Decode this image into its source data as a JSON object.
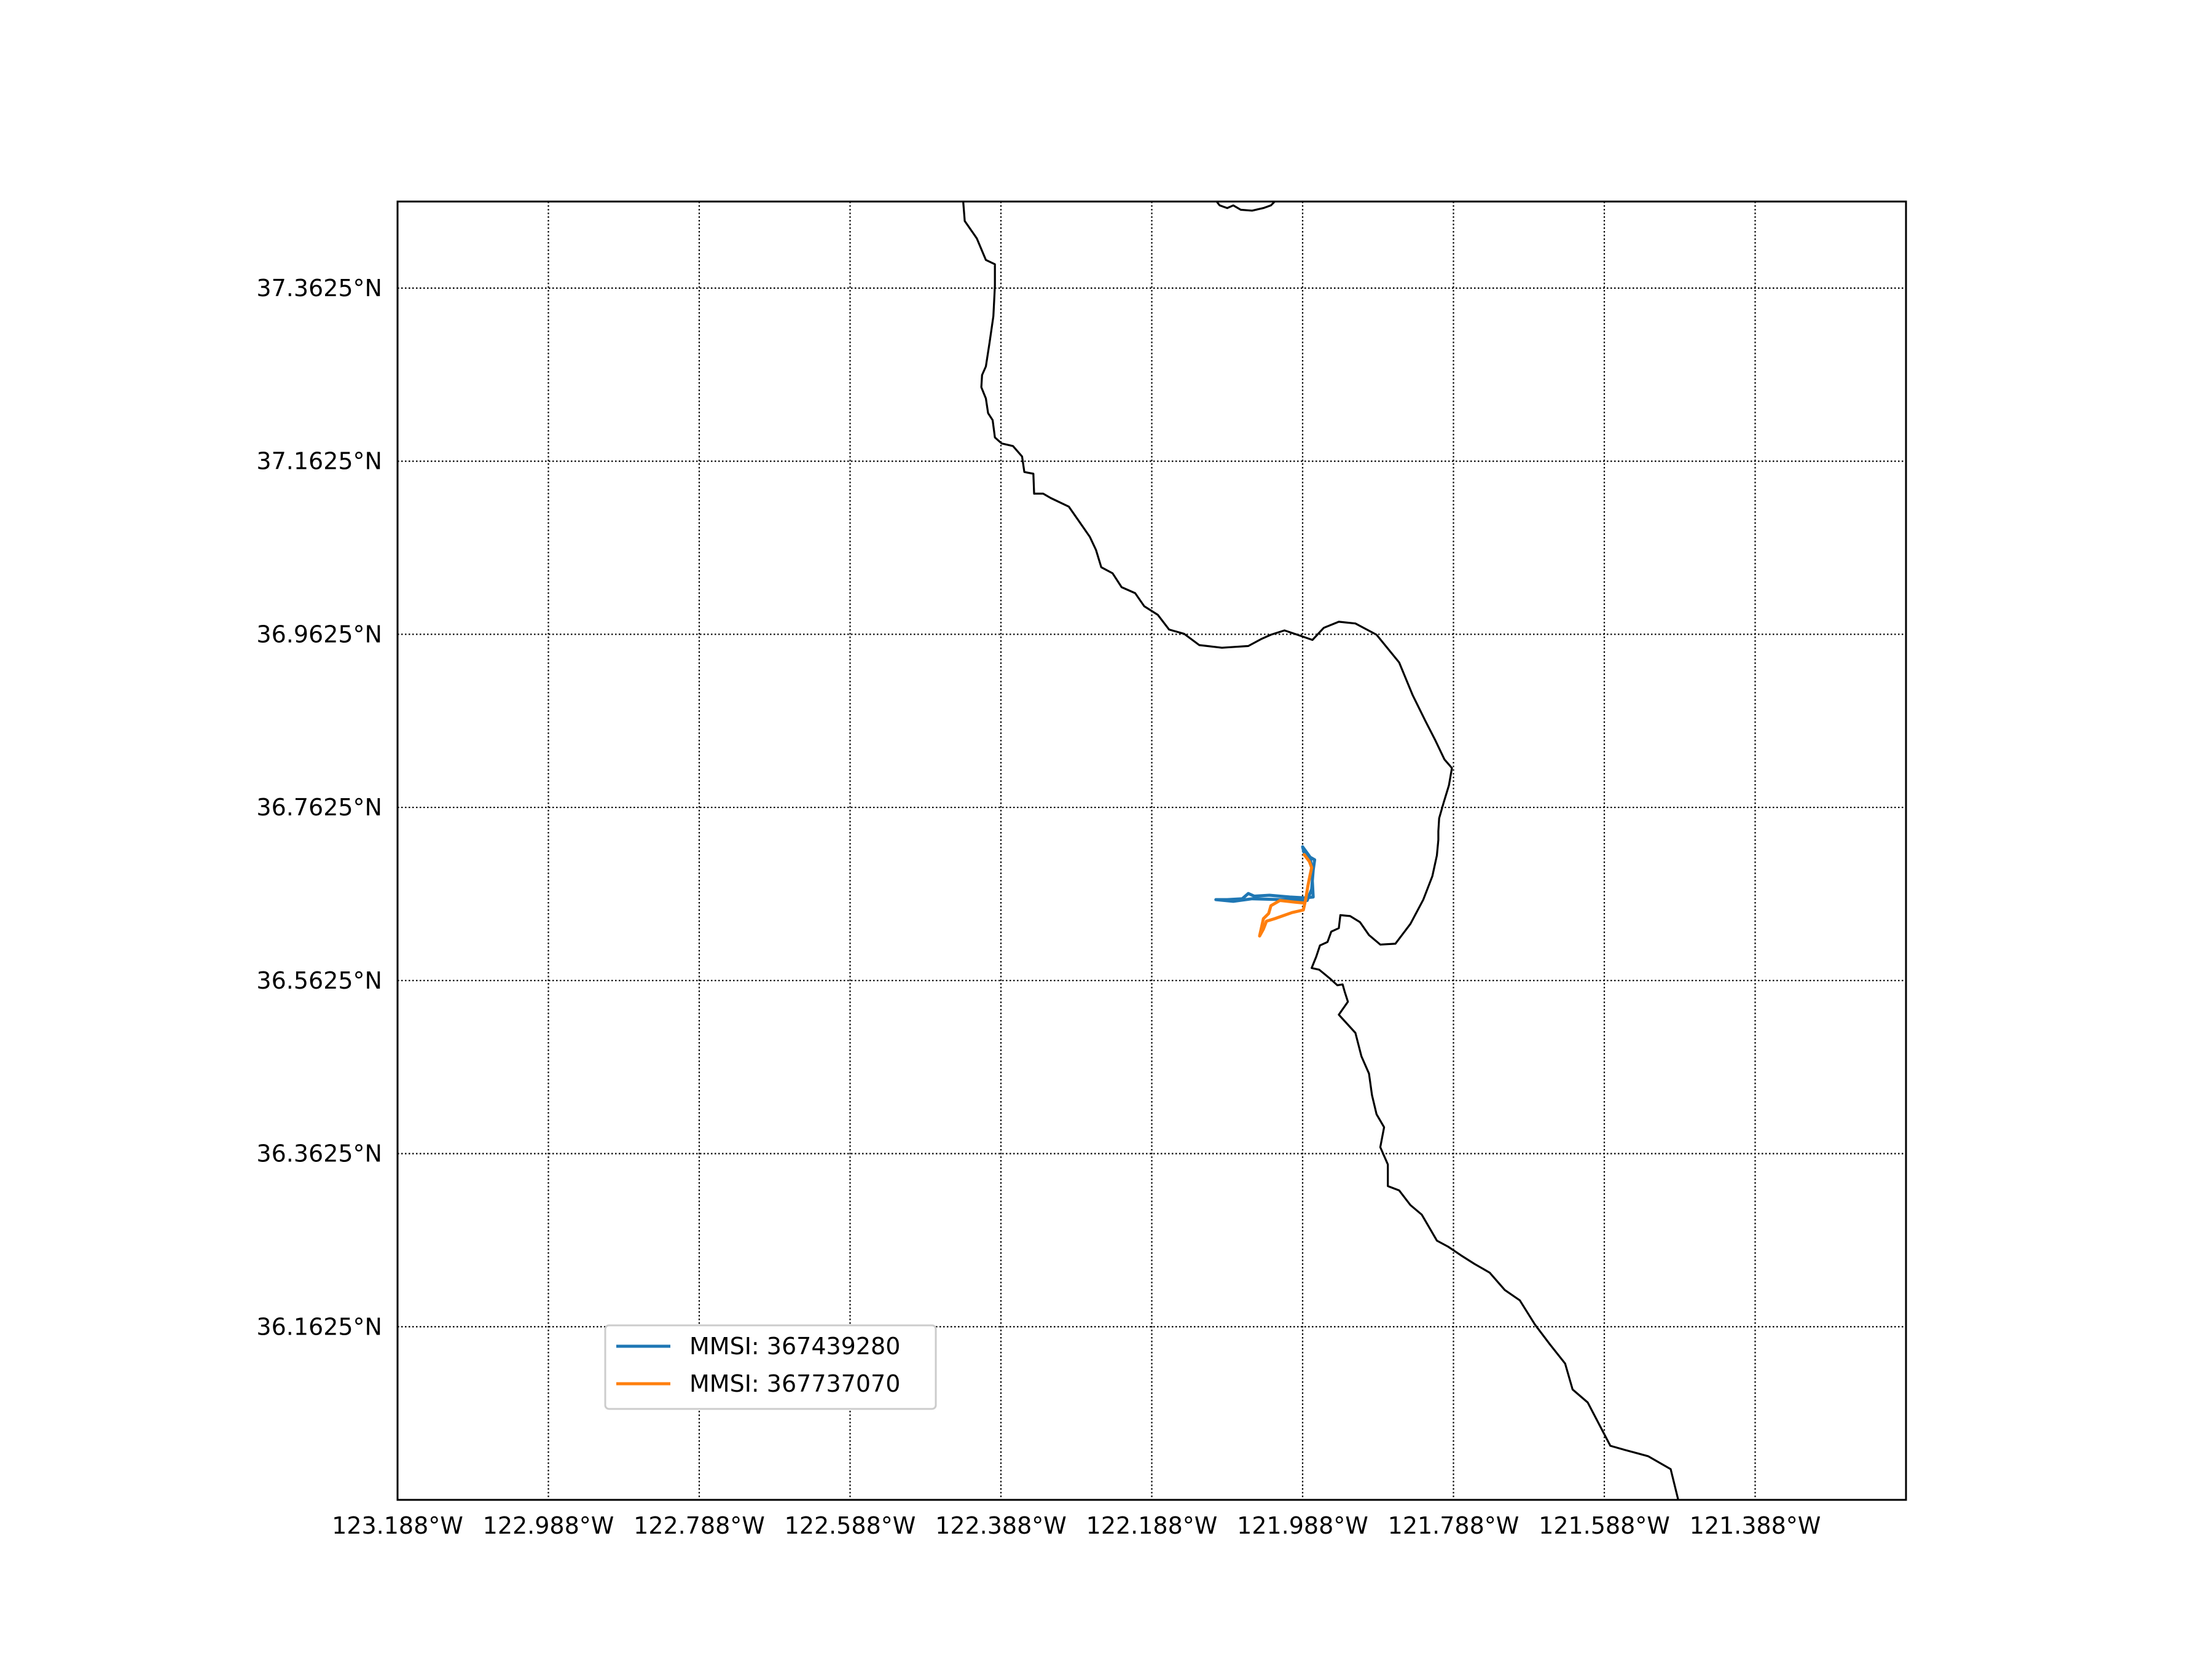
{
  "map": {
    "x_ticks": [
      "123.188°W",
      "122.988°W",
      "122.788°W",
      "122.588°W",
      "122.388°W",
      "122.188°W",
      "121.988°W",
      "121.788°W",
      "121.588°W",
      "121.388°W"
    ],
    "y_ticks": [
      "37.3625°N",
      "37.1625°N",
      "36.9625°N",
      "36.7625°N",
      "36.5625°N",
      "36.3625°N",
      "36.1625°N"
    ],
    "grid": true,
    "grid_style": "dotted",
    "legend_placement": "lower-left",
    "colors": {
      "coastline": "#000000",
      "grid": "#000000",
      "frame": "#000000"
    }
  },
  "legend": {
    "items": [
      {
        "label": "MMSI: 367439280",
        "color": "#1f77b4"
      },
      {
        "label": "MMSI: 367737070",
        "color": "#ff7f0e"
      }
    ]
  },
  "chart_data": {
    "type": "line",
    "xlim": [
      -123.188,
      -121.188
    ],
    "ylim": [
      35.9625,
      37.4625
    ],
    "x_unit": "degrees longitude",
    "y_unit": "degrees latitude",
    "series": [
      {
        "name": "MMSI: 367439280",
        "color": "#1f77b4",
        "points": [
          [
            -121.988,
            36.717
          ],
          [
            -121.978,
            36.705
          ],
          [
            -121.976,
            36.692
          ],
          [
            -121.975,
            36.675
          ],
          [
            -121.974,
            36.659
          ],
          [
            -121.985,
            36.658
          ],
          [
            -122.005,
            36.659
          ],
          [
            -122.032,
            36.661
          ],
          [
            -122.052,
            36.66
          ],
          [
            -122.06,
            36.663
          ],
          [
            -122.068,
            36.657
          ],
          [
            -122.088,
            36.656
          ],
          [
            -122.103,
            36.656
          ],
          [
            -122.08,
            36.654
          ],
          [
            -122.055,
            36.657
          ],
          [
            -122.015,
            36.656
          ],
          [
            -121.982,
            36.655
          ],
          [
            -121.976,
            36.668
          ],
          [
            -121.974,
            36.69
          ],
          [
            -121.972,
            36.702
          ],
          [
            -121.98,
            36.706
          ],
          [
            -121.986,
            36.71
          ],
          [
            -121.988,
            36.717
          ]
        ]
      },
      {
        "name": "MMSI: 367737070",
        "color": "#ff7f0e",
        "points": [
          [
            -121.986,
            36.708
          ],
          [
            -121.979,
            36.7
          ],
          [
            -121.976,
            36.693
          ],
          [
            -121.978,
            36.685
          ],
          [
            -121.981,
            36.672
          ],
          [
            -121.984,
            36.656
          ],
          [
            -121.987,
            36.644
          ],
          [
            -122.002,
            36.641
          ],
          [
            -122.025,
            36.634
          ],
          [
            -122.036,
            36.631
          ],
          [
            -122.04,
            36.622
          ],
          [
            -122.045,
            36.614
          ],
          [
            -122.04,
            36.634
          ],
          [
            -122.033,
            36.64
          ],
          [
            -122.03,
            36.649
          ],
          [
            -122.018,
            36.655
          ],
          [
            -121.998,
            36.653
          ],
          [
            -121.985,
            36.652
          ]
        ]
      }
    ],
    "coastline": [
      [
        -122.438,
        37.4625
      ],
      [
        -122.436,
        37.44
      ],
      [
        -122.42,
        37.42
      ],
      [
        -122.408,
        37.395
      ],
      [
        -122.396,
        37.39
      ],
      [
        -122.396,
        37.365
      ],
      [
        -122.398,
        37.33
      ],
      [
        -122.403,
        37.3
      ],
      [
        -122.408,
        37.272
      ],
      [
        -122.413,
        37.262
      ],
      [
        -122.414,
        37.248
      ],
      [
        -122.408,
        37.235
      ],
      [
        -122.405,
        37.218
      ],
      [
        -122.399,
        37.21
      ],
      [
        -122.396,
        37.19
      ],
      [
        -122.387,
        37.183
      ],
      [
        -122.372,
        37.18
      ],
      [
        -122.36,
        37.168
      ],
      [
        -122.357,
        37.15
      ],
      [
        -122.345,
        37.148
      ],
      [
        -122.344,
        37.125
      ],
      [
        -122.332,
        37.125
      ],
      [
        -122.322,
        37.12
      ],
      [
        -122.298,
        37.11
      ],
      [
        -122.282,
        37.09
      ],
      [
        -122.27,
        37.075
      ],
      [
        -122.262,
        37.06
      ],
      [
        -122.255,
        37.04
      ],
      [
        -122.24,
        37.033
      ],
      [
        -122.228,
        37.017
      ],
      [
        -122.21,
        37.01
      ],
      [
        -122.198,
        36.995
      ],
      [
        -122.18,
        36.985
      ],
      [
        -122.165,
        36.968
      ],
      [
        -122.145,
        36.963
      ],
      [
        -122.125,
        36.95
      ],
      [
        -122.095,
        36.947
      ],
      [
        -122.078,
        36.948
      ],
      [
        -122.06,
        36.949
      ],
      [
        -122.043,
        36.957
      ],
      [
        -122.03,
        36.962
      ],
      [
        -122.012,
        36.967
      ],
      [
        -121.995,
        36.962
      ],
      [
        -121.975,
        36.956
      ],
      [
        -121.96,
        36.97
      ],
      [
        -121.94,
        36.977
      ],
      [
        -121.918,
        36.975
      ],
      [
        -121.89,
        36.962
      ],
      [
        -121.86,
        36.93
      ],
      [
        -121.842,
        36.892
      ],
      [
        -121.825,
        36.862
      ],
      [
        -121.812,
        36.84
      ],
      [
        -121.8,
        36.818
      ],
      [
        -121.79,
        36.808
      ],
      [
        -121.794,
        36.788
      ],
      [
        -121.801,
        36.768
      ],
      [
        -121.807,
        36.75
      ],
      [
        -121.808,
        36.735
      ],
      [
        -121.808,
        36.725
      ],
      [
        -121.81,
        36.707
      ],
      [
        -121.816,
        36.683
      ],
      [
        -121.828,
        36.656
      ],
      [
        -121.845,
        36.628
      ],
      [
        -121.865,
        36.605
      ],
      [
        -121.885,
        36.604
      ],
      [
        -121.9,
        36.615
      ],
      [
        -121.912,
        36.63
      ],
      [
        -121.925,
        36.637
      ],
      [
        -121.938,
        36.638
      ],
      [
        -121.94,
        36.623
      ],
      [
        -121.95,
        36.619
      ],
      [
        -121.955,
        36.607
      ],
      [
        -121.965,
        36.603
      ],
      [
        -121.97,
        36.59
      ],
      [
        -121.976,
        36.577
      ],
      [
        -121.966,
        36.575
      ],
      [
        -121.952,
        36.565
      ],
      [
        -121.942,
        36.557
      ],
      [
        -121.935,
        36.558
      ],
      [
        -121.932,
        36.549
      ],
      [
        -121.928,
        36.538
      ],
      [
        -121.94,
        36.523
      ],
      [
        -121.918,
        36.502
      ],
      [
        -121.91,
        36.475
      ],
      [
        -121.9,
        36.455
      ],
      [
        -121.896,
        36.43
      ],
      [
        -121.89,
        36.408
      ],
      [
        -121.88,
        36.393
      ],
      [
        -121.885,
        36.37
      ],
      [
        -121.875,
        36.35
      ],
      [
        -121.875,
        36.325
      ],
      [
        -121.86,
        36.32
      ],
      [
        -121.845,
        36.303
      ],
      [
        -121.83,
        36.292
      ],
      [
        -121.818,
        36.274
      ],
      [
        -121.81,
        36.262
      ],
      [
        -121.795,
        36.255
      ],
      [
        -121.778,
        36.245
      ],
      [
        -121.76,
        36.235
      ],
      [
        -121.74,
        36.225
      ],
      [
        -121.72,
        36.205
      ],
      [
        -121.7,
        36.193
      ],
      [
        -121.68,
        36.165
      ],
      [
        -121.66,
        36.142
      ],
      [
        -121.64,
        36.12
      ],
      [
        -121.63,
        36.09
      ],
      [
        -121.61,
        36.075
      ],
      [
        -121.595,
        36.05
      ],
      [
        -121.58,
        36.025
      ],
      [
        -121.56,
        36.02
      ],
      [
        -121.53,
        36.013
      ],
      [
        -121.5,
        35.998
      ],
      [
        -121.49,
        35.9625
      ]
    ],
    "coastline_top": [
      [
        -122.102,
        37.4625
      ],
      [
        -122.098,
        37.458
      ],
      [
        -122.088,
        37.455
      ],
      [
        -122.08,
        37.458
      ],
      [
        -122.07,
        37.453
      ],
      [
        -122.055,
        37.452
      ],
      [
        -122.04,
        37.455
      ],
      [
        -122.03,
        37.458
      ],
      [
        -122.025,
        37.4625
      ]
    ]
  }
}
